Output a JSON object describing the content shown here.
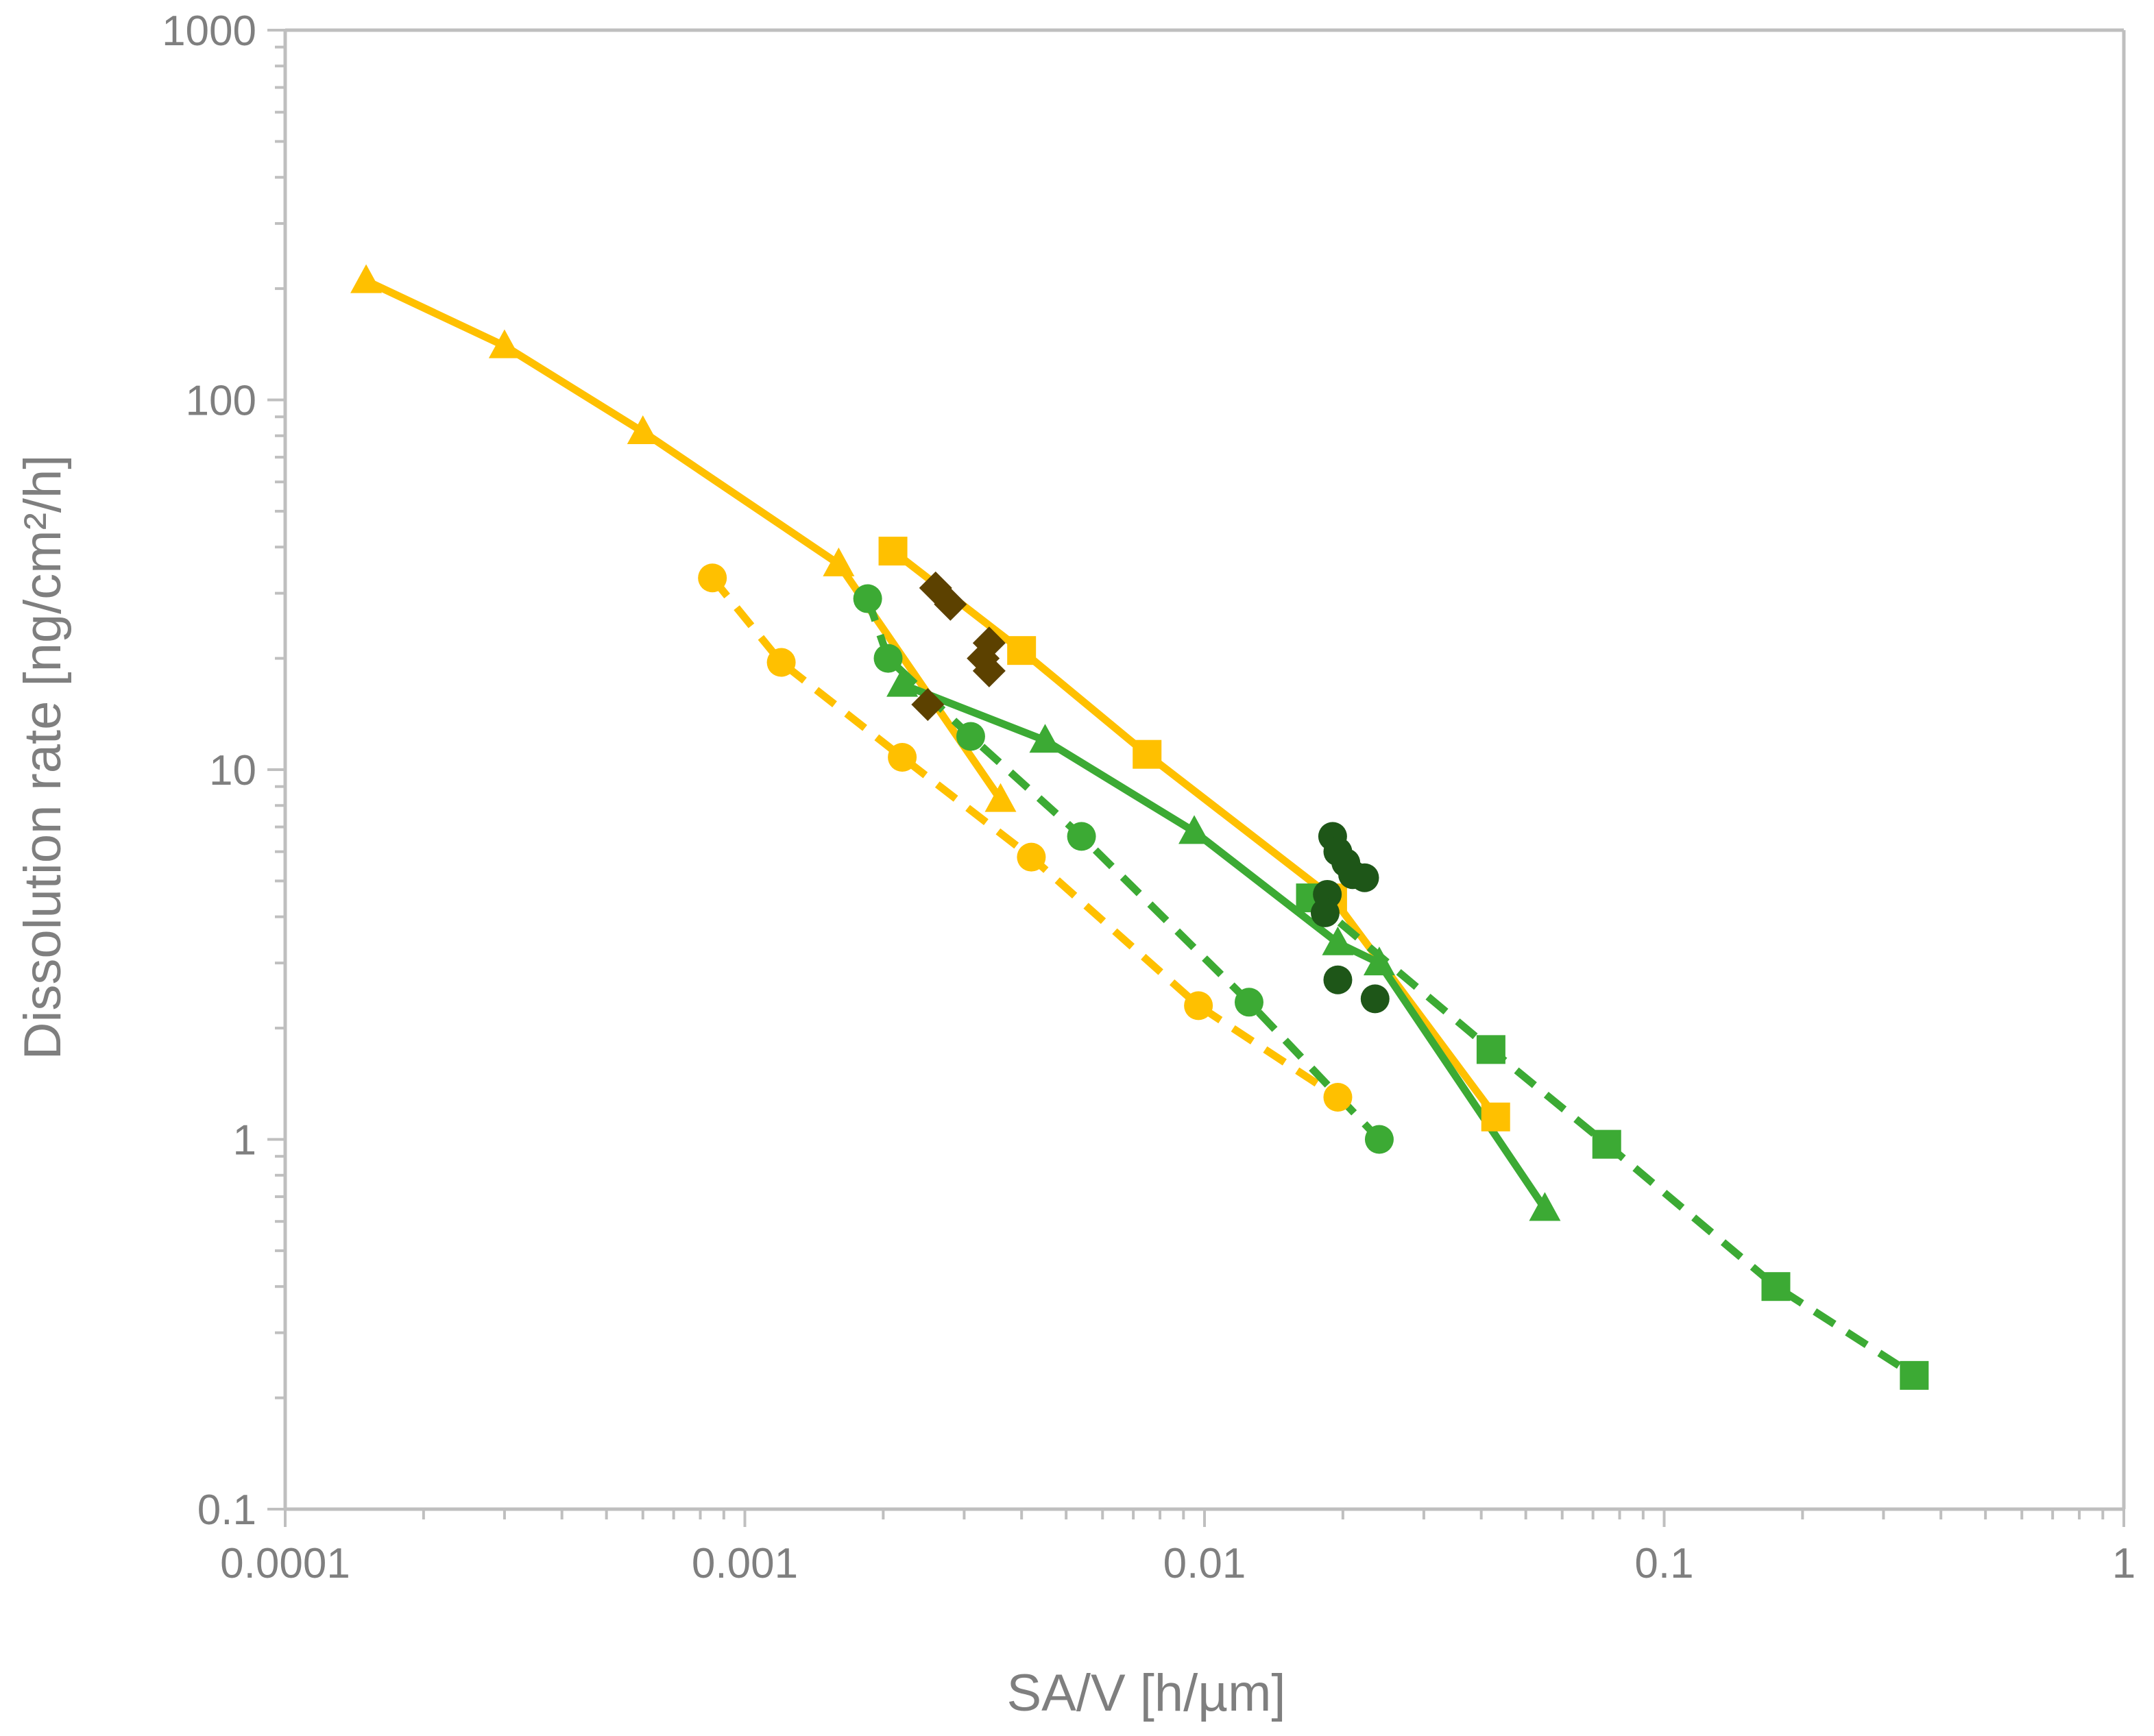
{
  "chart_data": {
    "type": "scatter",
    "title": "",
    "xlabel": "SA/V [h/µm]",
    "ylabel": "Dissolution rate [ng/cm²/h]",
    "xscale": "log",
    "yscale": "log",
    "xlim": [
      0.0001,
      1
    ],
    "ylim": [
      0.1,
      1000
    ],
    "x_ticks": [
      "0.0001",
      "0.001",
      "0.01",
      "0.1",
      "1"
    ],
    "y_ticks": [
      "0.1",
      "1",
      "10",
      "100",
      "1000"
    ],
    "grid": false,
    "legend": "none",
    "series": [
      {
        "name": "yellow-triangles-solid",
        "color": "#FFC000",
        "marker": "triangle",
        "line": "solid",
        "x": [
          0.00015,
          0.0003,
          0.0006,
          0.0016,
          0.0036
        ],
        "y": [
          210,
          140,
          82,
          36,
          8.3
        ]
      },
      {
        "name": "yellow-squares-solid",
        "color": "#FFC000",
        "marker": "square",
        "line": "solid",
        "x": [
          0.0021,
          0.004,
          0.0075,
          0.019,
          0.043
        ],
        "y": [
          39,
          21,
          11,
          4.5,
          1.15
        ]
      },
      {
        "name": "yellow-circles-dashed",
        "color": "#FFC000",
        "marker": "circle",
        "line": "dashed",
        "x": [
          0.00085,
          0.0012,
          0.0022,
          0.0042,
          0.0097,
          0.0195
        ],
        "y": [
          33,
          19.5,
          10.8,
          5.8,
          2.3,
          1.3
        ]
      },
      {
        "name": "green-triangles-solid",
        "color": "#3CAA34",
        "marker": "triangle",
        "line": "solid",
        "x": [
          0.0022,
          0.0045,
          0.0095,
          0.0195,
          0.024,
          0.055
        ],
        "y": [
          17,
          12,
          6.8,
          3.4,
          3.0,
          0.65
        ]
      },
      {
        "name": "green-circles-dashed",
        "color": "#3CAA34",
        "marker": "circle",
        "line": "dashed",
        "x": [
          0.00185,
          0.00205,
          0.0031,
          0.0054,
          0.0125,
          0.024
        ],
        "y": [
          29,
          20,
          12.3,
          6.6,
          2.35,
          1.0
        ]
      },
      {
        "name": "green-squares-dashed",
        "color": "#3CAA34",
        "marker": "square",
        "line": "dashed",
        "x": [
          0.017,
          0.042,
          0.075,
          0.175,
          0.35
        ],
        "y": [
          4.5,
          1.75,
          0.97,
          0.4,
          0.23
        ]
      },
      {
        "name": "dark-green-circles",
        "color": "#1E5618",
        "marker": "circle",
        "line": "none",
        "x": [
          0.019,
          0.0195,
          0.0203,
          0.0185,
          0.0183,
          0.021,
          0.0223,
          0.0195,
          0.0235
        ],
        "y": [
          6.6,
          6.0,
          5.6,
          4.6,
          4.1,
          5.2,
          5.1,
          2.7,
          2.4
        ]
      },
      {
        "name": "brown-diamonds",
        "color": "#5C4100",
        "marker": "diamond",
        "line": "none",
        "x": [
          0.0026,
          0.0028,
          0.0034,
          0.0033,
          0.0034,
          0.0025
        ],
        "y": [
          31,
          28,
          22,
          20,
          18.5,
          15
        ]
      }
    ]
  }
}
